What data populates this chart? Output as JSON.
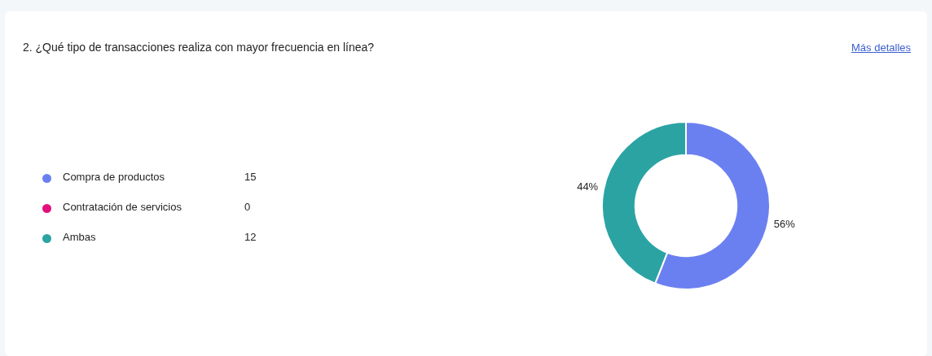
{
  "chart_data": {
    "type": "donut",
    "title": "2. ¿Qué tipo de transacciones realiza con mayor frecuencia en línea?",
    "categories": [
      "Compra de productos",
      "Contratación de servicios",
      "Ambas"
    ],
    "values": [
      56,
      0,
      44
    ],
    "colors": [
      "#6b80f0",
      "#e3107c",
      "#2ba3a3"
    ],
    "value_labels": [
      "56%",
      null,
      "44%"
    ],
    "legend": "left",
    "annotations": [
      "Más detalles",
      {
        "text": "15",
        "x": "Compra de productos"
      },
      {
        "text": "0",
        "x": "Contratación de servicios"
      },
      {
        "text": "12",
        "x": "Ambas"
      }
    ]
  }
}
